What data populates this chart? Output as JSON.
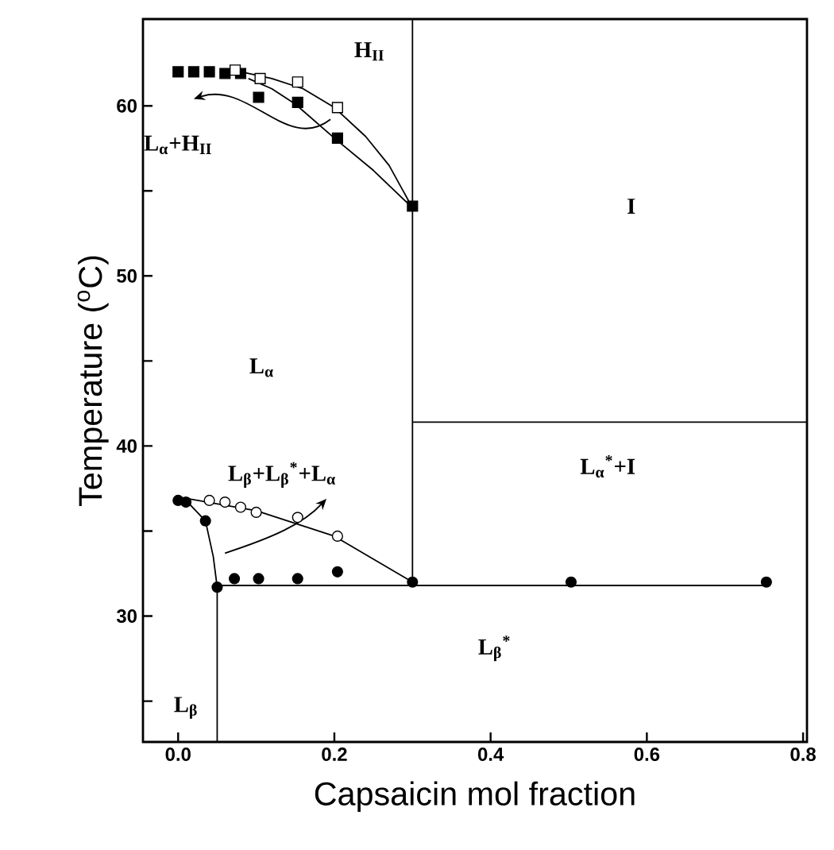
{
  "chart_data": {
    "type": "scatter",
    "xlabel": "Capsaicin mol fraction",
    "ylabel": "Temperature  ($^{o}$C)",
    "xlim": [
      -0.045,
      0.805
    ],
    "ylim": [
      22.6,
      65.1
    ],
    "xticks": [
      {
        "value": 0,
        "label": "0.0"
      },
      0.2,
      0.4,
      0.6,
      0.8
    ],
    "yticks": [
      {
        "value": 25,
        "label": null
      },
      30,
      {
        "value": 35,
        "label": null
      },
      40,
      {
        "value": 45,
        "label": null
      },
      50,
      {
        "value": 55,
        "label": null
      },
      60
    ],
    "grid": false,
    "legend": false,
    "series": [
      {
        "marker": "square",
        "color": "#000000",
        "x": [
          0.0,
          0.02,
          0.04,
          0.06,
          0.08,
          0.103,
          0.153,
          0.204,
          0.3
        ],
        "values": [
          62,
          62,
          62,
          61.9,
          61.9,
          60.5,
          60.2,
          58.1,
          54.1
        ]
      },
      {
        "marker": "square",
        "color": "#ffffff",
        "x": [
          0.073,
          0.105,
          0.153,
          0.204
        ],
        "values": [
          62.1,
          61.6,
          61.4,
          59.9
        ]
      },
      {
        "marker": "circle",
        "color": "#ffffff",
        "x": [
          0.04,
          0.06,
          0.08,
          0.1,
          0.153,
          0.204
        ],
        "values": [
          36.8,
          36.7,
          36.4,
          36.1,
          35.8,
          34.7
        ]
      },
      {
        "marker": "circle",
        "color": "#000000",
        "x": [
          0.0,
          0.01,
          0.035,
          0.05,
          0.072,
          0.103,
          0.153,
          0.204,
          0.3,
          0.503,
          0.753
        ],
        "values": [
          36.8,
          36.7,
          35.6,
          31.7,
          32.2,
          32.2,
          32.2,
          32.6,
          32,
          32,
          32
        ]
      },
      {
        "type": "line",
        "marker": "none",
        "color": "#000000",
        "x": [
          0.07,
          0.12,
          0.16,
          0.2,
          0.24,
          0.27,
          0.3
        ],
        "values": [
          62.1,
          61.6,
          61.0,
          59.9,
          58.2,
          56.5,
          54
        ]
      },
      {
        "type": "line",
        "marker": "none",
        "color": "#000000",
        "x": [
          0.09,
          0.12,
          0.15,
          0.2,
          0.25,
          0.3
        ],
        "values": [
          61.6,
          61,
          60.1,
          58.1,
          56.2,
          54
        ]
      },
      {
        "type": "line",
        "marker": "none",
        "color": "#000000",
        "x": [
          0.0,
          0.1,
          0.2,
          0.3
        ],
        "values": [
          37,
          36.2,
          34.7,
          32
        ]
      },
      {
        "type": "line",
        "marker": "none",
        "color": "#000000",
        "x": [
          0.01,
          0.035,
          0.045,
          0.05
        ],
        "values": [
          36.8,
          35.6,
          33.5,
          31.7
        ]
      },
      {
        "type": "line",
        "marker": "none",
        "color": "#000000",
        "x": [
          0.05,
          0.753
        ],
        "values": [
          31.8,
          31.8
        ]
      },
      {
        "type": "line",
        "marker": "none",
        "color": "#000000",
        "x": [
          0.3,
          0.3
        ],
        "values": [
          32,
          65.1
        ]
      },
      {
        "type": "line",
        "marker": "none",
        "color": "#000000",
        "x": [
          0.05,
          0.05
        ],
        "values": [
          22.6,
          31.7
        ]
      },
      {
        "type": "line",
        "marker": "none",
        "color": "#000000",
        "x": [
          0.3,
          0.805
        ],
        "values": [
          41.4,
          41.4
        ]
      }
    ],
    "annotations": [
      "H$_{II}$",
      "L$_{α}$+H$_{II}$",
      "I",
      "L$_{α}$",
      "L$_{β}$+L$_{β}$$^{*}$+L$_{α}$",
      "L$_{α}$$^{*}$+I",
      "L$_{β}$",
      "L$_{β}$$^{*}$"
    ]
  }
}
